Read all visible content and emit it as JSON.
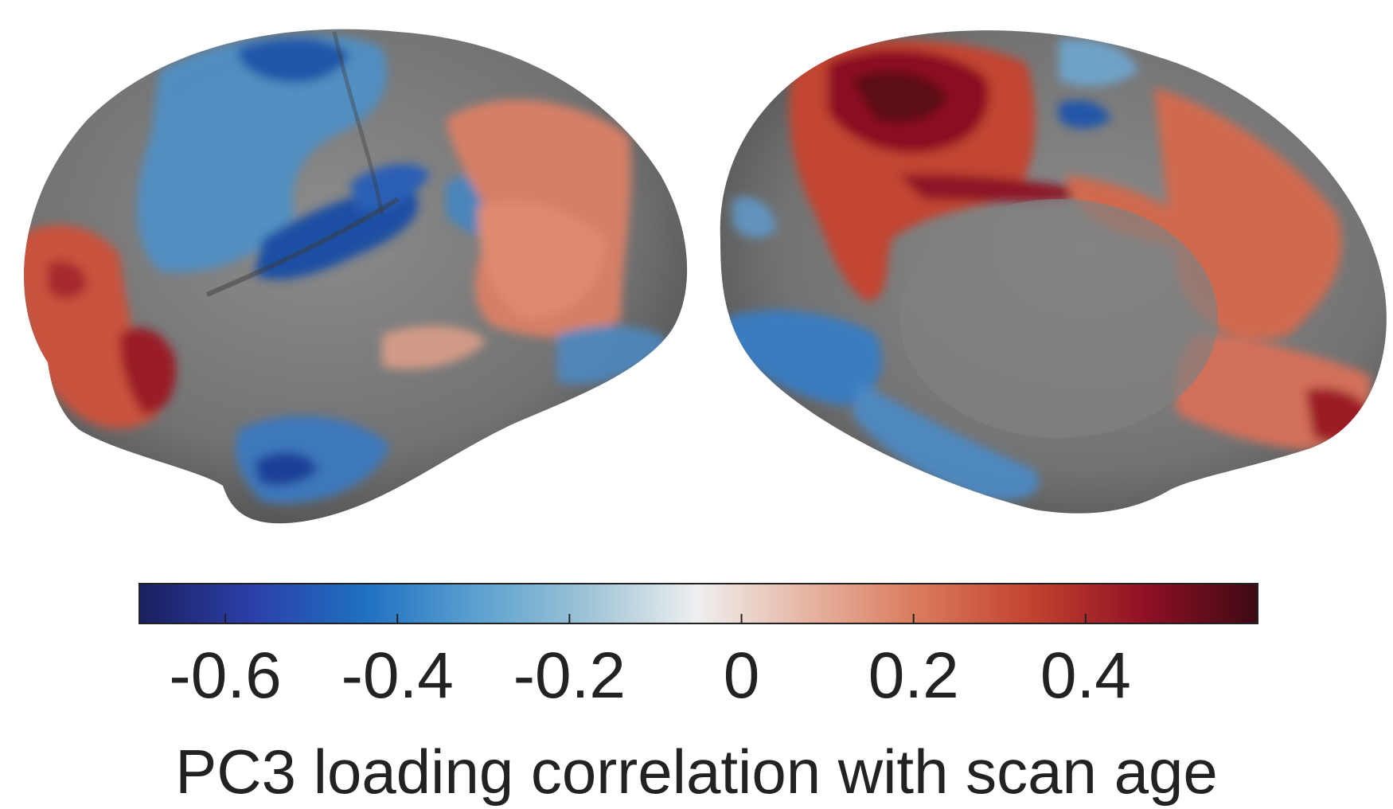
{
  "colorbar": {
    "label": "PC3 loading correlation with scan age",
    "min": -0.7,
    "max": 0.6,
    "ticks": [
      {
        "value": -0.6,
        "label": "-0.6"
      },
      {
        "value": -0.4,
        "label": "-0.4"
      },
      {
        "value": -0.2,
        "label": "-0.2"
      },
      {
        "value": 0,
        "label": "0"
      },
      {
        "value": 0.2,
        "label": "0.2"
      },
      {
        "value": 0.4,
        "label": "0.4"
      }
    ],
    "colors": [
      "#1a1f5e",
      "#2b3fa8",
      "#1f6fc2",
      "#5aa0cf",
      "#9ec3d6",
      "#efefef",
      "#e6b3a0",
      "#d9785a",
      "#c2412f",
      "#8f1025",
      "#3d0a14"
    ]
  },
  "brains": {
    "surface_color": "#7a7a7a",
    "views": [
      "lateral",
      "medial"
    ]
  }
}
